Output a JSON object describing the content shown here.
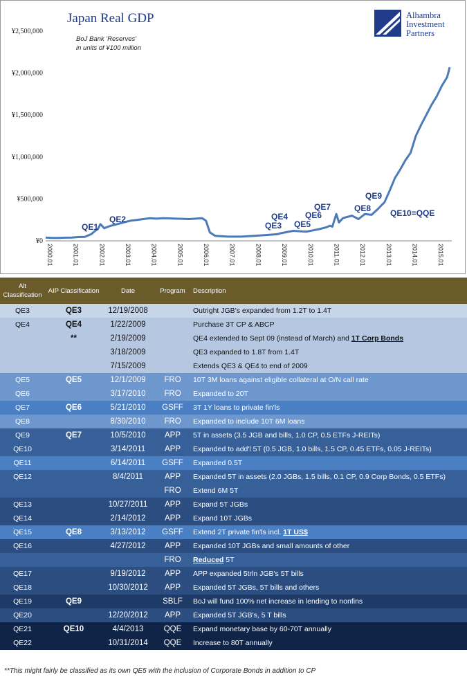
{
  "chart_data": {
    "type": "line",
    "title": "Japan Real GDP",
    "subtitle_line1": "BoJ Bank 'Reserves'",
    "subtitle_line2": "in units of ¥100 million",
    "y_ticks": [
      "¥0",
      "¥500,000",
      "¥1,000,000",
      "¥1,500,000",
      "¥2,000,000",
      "¥2,500,000"
    ],
    "y_tick_values": [
      0,
      500000,
      1000000,
      1500000,
      2000000,
      2500000
    ],
    "ylim": [
      0,
      2500000
    ],
    "x_ticks": [
      "2000.01",
      "2001.01",
      "2002.01",
      "2003.01",
      "2004.01",
      "2005.01",
      "2006.01",
      "2007.01",
      "2008.01",
      "2009.01",
      "2010.01",
      "2011.01",
      "2012.01",
      "2013.01",
      "2014.01",
      "2015.01"
    ],
    "xlim": [
      2000.0,
      2015.58
    ],
    "grid": false,
    "line_color": "#4a7ab8",
    "series": [
      {
        "x": [
          2000.0,
          2000.25,
          2000.5,
          2000.75,
          2001.0,
          2001.25,
          2001.5,
          2001.75,
          2001.9,
          2002.0,
          2002.1,
          2002.25,
          2002.4,
          2002.5,
          2002.75,
          2003.0,
          2003.25,
          2003.5,
          2003.75,
          2004.0,
          2004.25,
          2004.5,
          2004.75,
          2005.0,
          2005.25,
          2005.5,
          2005.75,
          2006.0,
          2006.15,
          2006.3,
          2006.5,
          2006.75,
          2007.0,
          2007.5,
          2008.0,
          2008.5,
          2008.9,
          2009.0,
          2009.5,
          2010.0,
          2010.5,
          2010.75,
          2010.9,
          2011.0,
          2011.15,
          2011.25,
          2011.4,
          2011.5,
          2011.75,
          2012.0,
          2012.25,
          2012.5,
          2012.75,
          2012.9,
          2013.0,
          2013.2,
          2013.4,
          2013.6,
          2013.8,
          2014.0,
          2014.2,
          2014.4,
          2014.6,
          2014.8,
          2015.0,
          2015.2,
          2015.4,
          2015.5
        ],
        "values": [
          40000,
          35000,
          35000,
          38000,
          40000,
          45000,
          48000,
          80000,
          120000,
          140000,
          200000,
          150000,
          170000,
          180000,
          200000,
          220000,
          240000,
          250000,
          260000,
          270000,
          265000,
          270000,
          268000,
          265000,
          263000,
          260000,
          265000,
          270000,
          240000,
          100000,
          60000,
          55000,
          50000,
          50000,
          60000,
          70000,
          80000,
          90000,
          120000,
          110000,
          140000,
          160000,
          180000,
          170000,
          320000,
          220000,
          270000,
          280000,
          300000,
          260000,
          320000,
          310000,
          380000,
          430000,
          460000,
          600000,
          750000,
          850000,
          960000,
          1050000,
          1250000,
          1380000,
          1500000,
          1620000,
          1720000,
          1850000,
          1950000,
          2070000
        ]
      }
    ],
    "annotations": [
      "QE1",
      "QE2",
      "QE3",
      "QE4",
      "QE5",
      "QE6",
      "QE7",
      "QE8",
      "QE9",
      "QE10=QQE"
    ]
  },
  "logo": {
    "line1": "Alhambra",
    "line2": "Investment",
    "line3": "Partners",
    "color": "#1f3b8a"
  },
  "table": {
    "headers": {
      "alt": "Alt Classification",
      "aip": "AIP Classification",
      "date": "Date",
      "program": "Program",
      "description": "Description"
    },
    "rows": [
      {
        "alt": "QE3",
        "aip": "QE3",
        "date": "12/19/2008",
        "program": "",
        "desc": "Outright JGB's expanded from 1.2T to 1.4T",
        "desc_ul": "",
        "desc_after": ""
      },
      {
        "alt": "QE4",
        "aip": "QE4",
        "date": "1/22/2009",
        "program": "",
        "desc": "Purchase 3T CP & ABCP",
        "desc_ul": "",
        "desc_after": ""
      },
      {
        "alt": "",
        "aip": "**",
        "date": "2/19/2009",
        "program": "",
        "desc": "QE4 extended to Sept 09 (instead of March) and ",
        "desc_ul": "1T Corp Bonds",
        "desc_after": ""
      },
      {
        "alt": "",
        "aip": "",
        "date": "3/18/2009",
        "program": "",
        "desc": "QE3 expanded to 1.8T from 1.4T",
        "desc_ul": "",
        "desc_after": ""
      },
      {
        "alt": "",
        "aip": "",
        "date": "7/15/2009",
        "program": "",
        "desc": "Extends QE3 & QE4 to end of 2009",
        "desc_ul": "",
        "desc_after": ""
      },
      {
        "alt": "QE5",
        "aip": "QE5",
        "date": "12/1/2009",
        "program": "FRO",
        "desc": "10T 3M loans against eligible collateral at O/N call rate",
        "desc_ul": "",
        "desc_after": ""
      },
      {
        "alt": "QE6",
        "aip": "",
        "date": "3/17/2010",
        "program": "FRO",
        "desc": "Expanded to 20T",
        "desc_ul": "",
        "desc_after": ""
      },
      {
        "alt": "QE7",
        "aip": "QE6",
        "date": "5/21/2010",
        "program": "GSFF",
        "desc": "3T 1Y loans to private fin'ls",
        "desc_ul": "",
        "desc_after": ""
      },
      {
        "alt": "QE8",
        "aip": "",
        "date": "8/30/2010",
        "program": "FRO",
        "desc": "Expanded to include 10T 6M loans",
        "desc_ul": "",
        "desc_after": ""
      },
      {
        "alt": "QE9",
        "aip": "QE7",
        "date": "10/5/2010",
        "program": "APP",
        "desc": "5T in assets (3.5 JGB and bills, 1.0 CP, 0.5 ETFs J-REITs)",
        "desc_ul": "",
        "desc_after": ""
      },
      {
        "alt": "QE10",
        "aip": "",
        "date": "3/14/2011",
        "program": "APP",
        "desc": "Expanded to add'l 5T (0.5 JGB, 1.0 bills, 1.5 CP, 0.45 ETFs, 0.05 J-REITs)",
        "desc_ul": "",
        "desc_after": ""
      },
      {
        "alt": "QE11",
        "aip": "",
        "date": "6/14/2011",
        "program": "GSFF",
        "desc": "Expanded 0.5T",
        "desc_ul": "",
        "desc_after": ""
      },
      {
        "alt": "QE12",
        "aip": "",
        "date": "8/4/2011",
        "program": "APP",
        "desc": "Expanded 5T in assets (2.0 JGBs, 1.5 bills, 0.1 CP, 0.9 Corp Bonds, 0.5 ETFs)",
        "desc_ul": "",
        "desc_after": ""
      },
      {
        "alt": "",
        "aip": "",
        "date": "",
        "program": "FRO",
        "desc": "Extend 6M 5T",
        "desc_ul": "",
        "desc_after": ""
      },
      {
        "alt": "QE13",
        "aip": "",
        "date": "10/27/2011",
        "program": "APP",
        "desc": "Expand 5T JGBs",
        "desc_ul": "",
        "desc_after": ""
      },
      {
        "alt": "QE14",
        "aip": "",
        "date": "2/14/2012",
        "program": "APP",
        "desc": "Expand 10T JGBs",
        "desc_ul": "",
        "desc_after": ""
      },
      {
        "alt": "QE15",
        "aip": "QE8",
        "date": "3/13/2012",
        "program": "GSFF",
        "desc": "Extend 2T private fin'ls incl. ",
        "desc_ul": "1T US$",
        "desc_after": ""
      },
      {
        "alt": "QE16",
        "aip": "",
        "date": "4/27/2012",
        "program": "APP",
        "desc": "Expanded 10T JGBs and small amounts of other",
        "desc_ul": "",
        "desc_after": ""
      },
      {
        "alt": "",
        "aip": "",
        "date": "",
        "program": "FRO",
        "desc": "",
        "desc_ul": "Reduced",
        "desc_after": " 5T"
      },
      {
        "alt": "QE17",
        "aip": "",
        "date": "9/19/2012",
        "program": "APP",
        "desc": "APP expanded 5trln JGB's 5T bills",
        "desc_ul": "",
        "desc_after": ""
      },
      {
        "alt": "QE18",
        "aip": "",
        "date": "10/30/2012",
        "program": "APP",
        "desc": "Expanded 5T JGBs, 5T bills and others",
        "desc_ul": "",
        "desc_after": ""
      },
      {
        "alt": "QE19",
        "aip": "QE9",
        "date": "",
        "program": "SBLF",
        "desc": "BoJ will fund 100% net increase in lending to nonfins",
        "desc_ul": "",
        "desc_after": ""
      },
      {
        "alt": "QE20",
        "aip": "",
        "date": "12/20/2012",
        "program": "APP",
        "desc": "Expanded 5T JGB's, 5 T bills",
        "desc_ul": "",
        "desc_after": ""
      },
      {
        "alt": "QE21",
        "aip": "QE10",
        "date": "4/4/2013",
        "program": "QQE",
        "desc": "Expand monetary base by 60-70T annually",
        "desc_ul": "",
        "desc_after": ""
      },
      {
        "alt": "QE22",
        "aip": "",
        "date": "10/31/2014",
        "program": "QQE",
        "desc": "Increase to 80T annually",
        "desc_ul": "",
        "desc_after": ""
      }
    ],
    "row_colors": [
      "#c6d5e8",
      "#b6c8e1",
      "#b6c8e1",
      "#b6c8e1",
      "#b6c8e1",
      "#6e97cd",
      "#6e97cd",
      "#4b7fc4",
      "#6e97cd",
      "#375f98",
      "#375f98",
      "#4b7fc4",
      "#375f98",
      "#375f98",
      "#2b4d80",
      "#2b4d80",
      "#4b7fc4",
      "#2b4d80",
      "#375f98",
      "#2b4d80",
      "#2b4d80",
      "#1e3a66",
      "#2b4d80",
      "#0f2447",
      "#0f2447"
    ]
  },
  "footnote": "**This might fairly be classified as its own QE5 with the inclusion of Corporate Bonds in addition to CP"
}
